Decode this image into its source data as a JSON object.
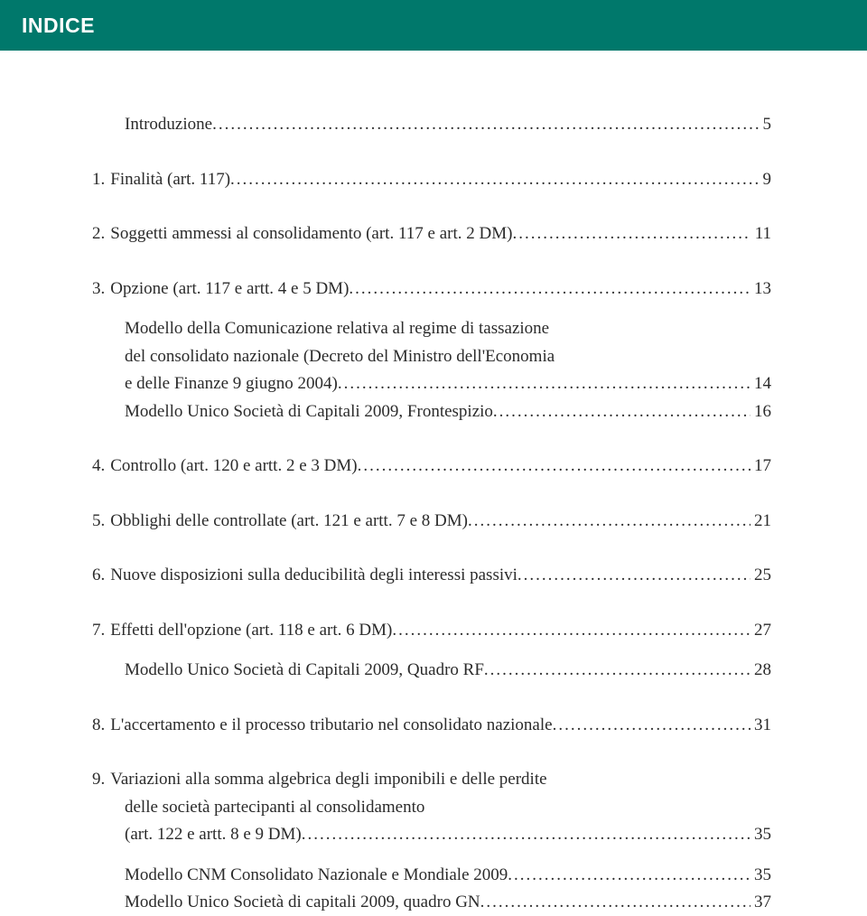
{
  "header": {
    "title": "INDICE"
  },
  "toc": {
    "intro": {
      "label": "Introduzione",
      "page": "5"
    },
    "i1": {
      "num": "1.",
      "label": "Finalità (art. 117)",
      "page": "9"
    },
    "i2": {
      "num": "2.",
      "label": "Soggetti ammessi al consolidamento (art. 117 e art. 2 DM)",
      "page": "11"
    },
    "i3": {
      "num": "3.",
      "label": "Opzione (art. 117 e artt. 4 e 5 DM)",
      "page": "13"
    },
    "i3s1a": "Modello della Comunicazione relativa al regime di tassazione",
    "i3s1b": "del consolidato nazionale (Decreto del Ministro dell'Economia",
    "i3s1c": {
      "label": "e delle Finanze 9 giugno 2004)",
      "page": "14"
    },
    "i3s2": {
      "label": "Modello Unico Società di Capitali 2009, Frontespizio",
      "page": "16"
    },
    "i4": {
      "num": "4.",
      "label": "Controllo (art. 120 e artt. 2 e 3 DM)",
      "page": "17"
    },
    "i5": {
      "num": "5.",
      "label": "Obblighi delle controllate (art. 121 e artt. 7 e 8 DM)",
      "page": "21"
    },
    "i6": {
      "num": "6.",
      "label": "Nuove disposizioni sulla deducibilità degli interessi passivi",
      "page": "25"
    },
    "i7": {
      "num": "7.",
      "label": "Effetti dell'opzione (art. 118 e art. 6 DM)",
      "page": "27"
    },
    "i7s1": {
      "label": "Modello Unico Società di Capitali 2009, Quadro RF",
      "page": "28"
    },
    "i8": {
      "num": "8.",
      "label": "L'accertamento e il processo tributario nel consolidato nazionale",
      "page": "31"
    },
    "i9": {
      "num": "9.",
      "a": "Variazioni alla somma algebrica degli imponibili e delle perdite",
      "b": "delle società partecipanti al consolidamento",
      "c": {
        "label": "(art. 122 e artt. 8 e 9 DM)",
        "page": "35"
      }
    },
    "i9s1": {
      "label": "Modello CNM Consolidato Nazionale e Mondiale 2009",
      "page": "35"
    },
    "i9s2": {
      "label": "Modello Unico Società di capitali 2009, quadro GN",
      "page": "37"
    }
  }
}
